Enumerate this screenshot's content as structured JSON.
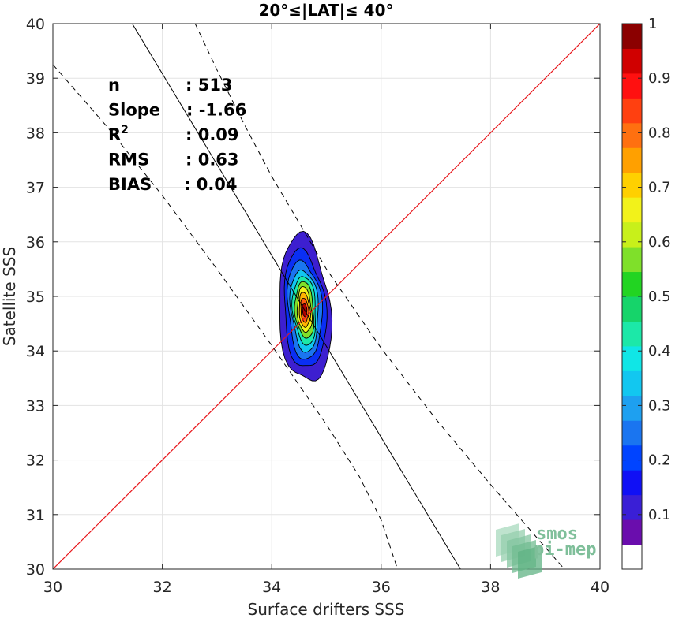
{
  "chart_data": {
    "type": "contour-scatter",
    "title": "20°≤|LAT|≤ 40°",
    "xlabel": "Surface drifters SSS",
    "ylabel": "Satellite SSS",
    "xlim": [
      30,
      40
    ],
    "ylim": [
      30,
      40
    ],
    "x_ticks": [
      30,
      32,
      34,
      36,
      38,
      40
    ],
    "y_ticks": [
      30,
      31,
      32,
      33,
      34,
      35,
      36,
      37,
      38,
      39,
      40
    ],
    "grid": true,
    "stats": [
      {
        "label": "n",
        "value": ": 513"
      },
      {
        "label": "Slope",
        "value": ": -1.66"
      },
      {
        "label": "R",
        "sup": "2",
        "value": ": 0.09"
      },
      {
        "label": "RMS",
        "value": ": 0.63"
      },
      {
        "label": "BIAS",
        "value": ": 0.04"
      }
    ],
    "identity_line": {
      "points": [
        [
          30,
          30
        ],
        [
          40,
          40
        ]
      ],
      "color": "#e8161b"
    },
    "regression_line": {
      "points": [
        [
          31.45,
          40
        ],
        [
          37.45,
          30
        ]
      ],
      "color": "#000000"
    },
    "confidence_bands": [
      {
        "points": [
          [
            30,
            39.25
          ],
          [
            31,
            38.1
          ],
          [
            32,
            36.85
          ],
          [
            33,
            35.5
          ],
          [
            34,
            34.1
          ],
          [
            35,
            32.65
          ],
          [
            35.6,
            31.7
          ],
          [
            36.0,
            30.9
          ],
          [
            36.3,
            30
          ]
        ]
      },
      {
        "points": [
          [
            32.6,
            40
          ],
          [
            33.0,
            39.15
          ],
          [
            33.5,
            38.15
          ],
          [
            34,
            37.2
          ],
          [
            35,
            35.5
          ],
          [
            36,
            34.05
          ],
          [
            37,
            32.75
          ],
          [
            38,
            31.55
          ],
          [
            39,
            30.4
          ],
          [
            39.35,
            30
          ]
        ]
      }
    ],
    "density_center": [
      34.6,
      34.75
    ],
    "density_levels": [
      {
        "level": 0.05,
        "rx": 0.47,
        "ry": 1.35,
        "color": "#3d1fd0"
      },
      {
        "level": 0.15,
        "rx": 0.38,
        "ry": 1.08,
        "color": "#0a2ff4"
      },
      {
        "level": 0.25,
        "rx": 0.31,
        "ry": 0.9,
        "color": "#1a75f0"
      },
      {
        "level": 0.35,
        "rx": 0.25,
        "ry": 0.75,
        "color": "#12c7f0"
      },
      {
        "level": 0.45,
        "rx": 0.21,
        "ry": 0.63,
        "color": "#1ce8a8"
      },
      {
        "level": 0.55,
        "rx": 0.17,
        "ry": 0.52,
        "color": "#7fe02a"
      },
      {
        "level": 0.65,
        "rx": 0.13,
        "ry": 0.42,
        "color": "#f2f21a"
      },
      {
        "level": 0.75,
        "rx": 0.1,
        "ry": 0.32,
        "color": "#ffb300"
      },
      {
        "level": 0.85,
        "rx": 0.07,
        "ry": 0.22,
        "color": "#ff5a10"
      },
      {
        "level": 0.95,
        "rx": 0.04,
        "ry": 0.12,
        "color": "#b00000"
      }
    ],
    "colorbar": {
      "ticks": [
        "0.1",
        "0.2",
        "0.3",
        "0.4",
        "0.5",
        "0.6",
        "0.7",
        "0.8",
        "0.9",
        "1"
      ],
      "range": [
        0,
        1
      ],
      "colors": [
        "#ffffff",
        "#6a0dad",
        "#3a1fd6",
        "#1010f5",
        "#0044ff",
        "#1a75f0",
        "#1ea0f0",
        "#12c7f0",
        "#10e6e6",
        "#1ce8a8",
        "#16d46a",
        "#22d422",
        "#7fe02a",
        "#c8f01a",
        "#f2f21a",
        "#ffd000",
        "#ffa000",
        "#ff7010",
        "#ff4010",
        "#ff1010",
        "#d00000",
        "#8b0000"
      ]
    },
    "logo": {
      "line1": "smos",
      "line2": "pi-mep"
    }
  }
}
